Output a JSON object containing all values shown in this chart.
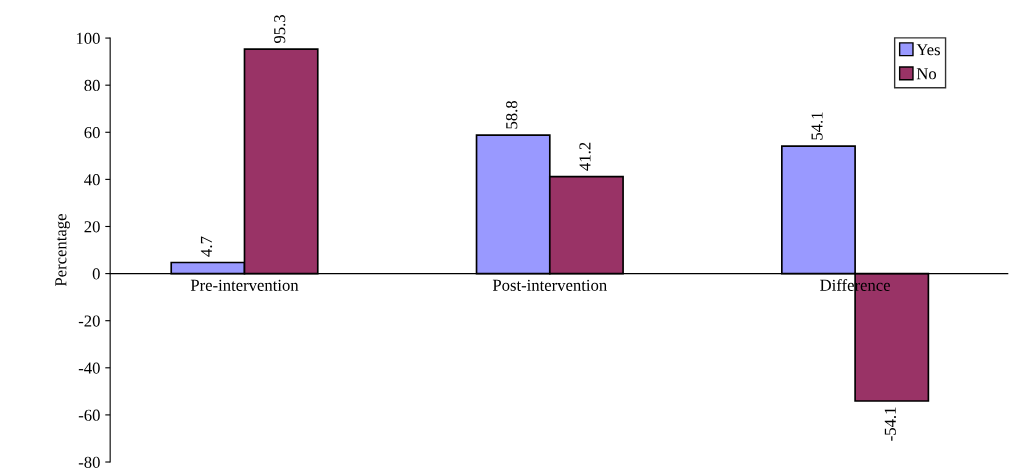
{
  "chart_data": {
    "type": "bar",
    "ylabel": "Percentage",
    "categories": [
      "Pre-intervention",
      "Post-intervention",
      "Difference"
    ],
    "series": [
      {
        "name": "Yes",
        "color": "#9999ff",
        "values": [
          4.7,
          58.8,
          54.1
        ]
      },
      {
        "name": "No",
        "color": "#993366",
        "values": [
          95.3,
          41.2,
          -54.1
        ]
      }
    ],
    "ylim": [
      -80,
      100
    ],
    "yticks": [
      -80,
      -60,
      -40,
      -20,
      0,
      20,
      40,
      60,
      80,
      100
    ],
    "data_labels": true,
    "legend": "top right",
    "grid": false
  }
}
